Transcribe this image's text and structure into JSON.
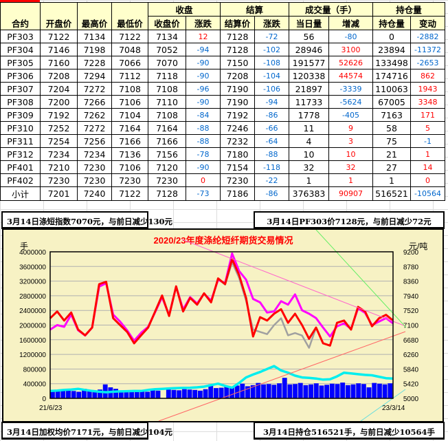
{
  "table": {
    "headers_top": {
      "contract": "合约",
      "open": "开盘价",
      "high": "最高价",
      "low": "最低价",
      "close_group": "收盘",
      "settle_group": "结算",
      "volume_group": "成交量（手）",
      "oi_group": "持仓量"
    },
    "headers_sub": {
      "close": "收盘价",
      "close_chg": "涨跌",
      "settle": "结算价",
      "settle_chg": "涨跌",
      "vol": "当日量",
      "vol_chg": "增减",
      "oi": "持仓量",
      "oi_chg": "变动"
    },
    "rows": [
      [
        "PF303",
        "7122",
        "7134",
        "7122",
        "7134",
        "12",
        "7128",
        "-72",
        "56",
        "-80",
        "0",
        "-2882"
      ],
      [
        "PF304",
        "7146",
        "7198",
        "7048",
        "7052",
        "-94",
        "7128",
        "-102",
        "28946",
        "3100",
        "23894",
        "-11372"
      ],
      [
        "PF305",
        "7160",
        "7228",
        "7066",
        "7070",
        "-90",
        "7150",
        "-108",
        "191577",
        "52626",
        "133498",
        "-2653"
      ],
      [
        "PF306",
        "7208",
        "7294",
        "7112",
        "7118",
        "-90",
        "7208",
        "-104",
        "120338",
        "44574",
        "174716",
        "862"
      ],
      [
        "PF307",
        "7204",
        "7272",
        "7108",
        "7108",
        "-96",
        "7190",
        "-106",
        "21897",
        "-3339",
        "110063",
        "1943"
      ],
      [
        "PF308",
        "7200",
        "7266",
        "7106",
        "7110",
        "-90",
        "7190",
        "-94",
        "11733",
        "-5624",
        "67005",
        "3348"
      ],
      [
        "PF309",
        "7192",
        "7262",
        "7104",
        "7108",
        "-84",
        "7192",
        "-86",
        "1778",
        "-405",
        "7163",
        "171"
      ],
      [
        "PF310",
        "7252",
        "7272",
        "7164",
        "7164",
        "-88",
        "7246",
        "-66",
        "11",
        "9",
        "58",
        "5"
      ],
      [
        "PF311",
        "7254",
        "7256",
        "7166",
        "7166",
        "-88",
        "7232",
        "-64",
        "4",
        "3",
        "75",
        "-1"
      ],
      [
        "PF312",
        "7234",
        "7234",
        "7136",
        "7156",
        "-78",
        "7180",
        "-88",
        "10",
        "10",
        "21",
        "1"
      ],
      [
        "PF401",
        "7210",
        "7230",
        "7106",
        "7120",
        "-90",
        "7154",
        "-118",
        "32",
        "32",
        "27",
        "14"
      ],
      [
        "PF402",
        "7230",
        "7230",
        "7230",
        "7230",
        "0",
        "7230",
        "-22",
        "1",
        "1",
        "1",
        "0"
      ],
      [
        "小计",
        "7201",
        "7240",
        "7122",
        "7128",
        "-73",
        "7186",
        "-86",
        "376383",
        "90907",
        "516521",
        "-10564"
      ]
    ]
  },
  "captions": {
    "top_left": "3月14日涤短指数7070元，与前日减少130元",
    "top_right": "3月14日PF303价7128元，与前日减少72元",
    "bottom_left": "3月14日加权均价7171元，与前日减少104元",
    "bottom_right": "3月14日持仓516521手，与前日减少10564手"
  },
  "colors": {
    "up": "#ff0000",
    "down": "#0066cc",
    "header_bg": "#ffffcc",
    "chart_bg": "#f7f2c4",
    "title": "#ff0000",
    "volume": "#0000ff",
    "open_interest": "#00eeee",
    "weighted_price": "#ff0000",
    "index": "#ff00ff",
    "settle": "#a0a0a0"
  },
  "chart_data": {
    "type": "line",
    "title": "2020/23年度涤纶短纤期货交易情况",
    "left_unit": "手",
    "right_unit": "元/吨",
    "left_ylim": [
      0,
      4000000
    ],
    "left_ticks": [
      "4000000",
      "3600000",
      "3200000",
      "2800000",
      "2400000",
      "2000000",
      "1600000",
      "1200000",
      "800000",
      "400000",
      "0"
    ],
    "right_ylim": [
      5000,
      9200
    ],
    "right_ticks": [
      "9200",
      "8780",
      "8360",
      "7940",
      "7520",
      "7100",
      "6680",
      "6260",
      "5840",
      "5420",
      "5000"
    ],
    "x_start": "21/6/23",
    "x_end": "23/3/14",
    "grid": true,
    "series": [
      {
        "key": "weighted_price",
        "axis": "right",
        "type": "line",
        "values": [
          7295,
          7490,
          7230,
          7460,
          6970,
          6806,
          7030,
          8273,
          8340,
          7295,
          7100,
          6904,
          6578,
          6806,
          7030,
          7490,
          7947,
          7360,
          8210,
          7490,
          7880,
          7686,
          8010,
          7750,
          8436,
          8273,
          8990,
          8534,
          7880,
          6773,
          7327,
          7230,
          7425,
          7556,
          7165,
          7425,
          7100,
          6708,
          7030,
          6578,
          6513,
          7165,
          7230,
          6970,
          7621,
          7490,
          7067,
          7295,
          7393,
          7230
        ]
      },
      {
        "key": "index",
        "axis": "right",
        "type": "line",
        "values": [
          6970,
          7100,
          7050,
          7400,
          6950,
          6800,
          7030,
          8200,
          8300,
          7400,
          7200,
          6950,
          6650,
          6880,
          7050,
          7470,
          7900,
          7380,
          8200,
          7550,
          7900,
          7720,
          8000,
          7800,
          8400,
          8300,
          9150,
          8650,
          8403,
          7849,
          7751,
          7458,
          7490,
          7784,
          7686,
          7980,
          7523,
          7425,
          7300,
          7030,
          6773,
          7067,
          7150,
          6990,
          7580,
          7450,
          7100,
          7200,
          7300,
          7150
        ]
      },
      {
        "key": "settle",
        "axis": "right",
        "type": "line",
        "values": [
          7295,
          7480,
          7230,
          7450,
          6970,
          6800,
          7030,
          8260,
          8330,
          7300,
          7100,
          6900,
          6590,
          6810,
          7030,
          7490,
          7930,
          7380,
          8190,
          7500,
          7870,
          7680,
          8000,
          7760,
          8420,
          8260,
          8900,
          8450,
          7800,
          6970,
          6904,
          6839,
          7100,
          7295,
          6806,
          6871,
          6800,
          6447,
          7030,
          6578,
          6513,
          7165,
          7230,
          6970,
          7621,
          7490,
          7067,
          7295,
          7393,
          7230
        ]
      },
      {
        "key": "open_interest",
        "axis": "left",
        "type": "line",
        "values": [
          200000,
          210000,
          230000,
          240000,
          260000,
          230000,
          200000,
          180000,
          168000,
          180000,
          190000,
          195000,
          200000,
          200000,
          230000,
          250000,
          260000,
          270000,
          280000,
          285000,
          290000,
          300000,
          320000,
          360000,
          400000,
          340000,
          290000,
          420000,
          570000,
          650000,
          720000,
          800000,
          880000,
          760000,
          700000,
          620000,
          570000,
          560000,
          540000,
          510000,
          520000,
          600000,
          700000,
          680000,
          660000,
          640000,
          630000,
          590000,
          550000,
          540000
        ]
      },
      {
        "key": "volume",
        "axis": "left",
        "type": "bar",
        "values": [
          220000,
          200000,
          210000,
          230000,
          200000,
          180000,
          260000,
          210000,
          200000,
          240000,
          380000,
          300000,
          260000,
          200000,
          220000,
          190000,
          200000,
          210000,
          180000,
          220000,
          210000,
          0,
          240000,
          230000,
          220000,
          250000,
          240000,
          230000,
          210000,
          250000,
          380000,
          280000,
          290000,
          310000,
          300000,
          350000,
          400000,
          330000,
          360000,
          420000,
          380000,
          390000,
          370000,
          410000,
          560000,
          380000,
          390000,
          420000,
          360000,
          380000,
          410000,
          350000,
          370000,
          400000,
          390000,
          430000,
          360000,
          380000,
          410000,
          390000,
          300000,
          420000,
          400000,
          380000,
          410000
        ]
      }
    ]
  }
}
